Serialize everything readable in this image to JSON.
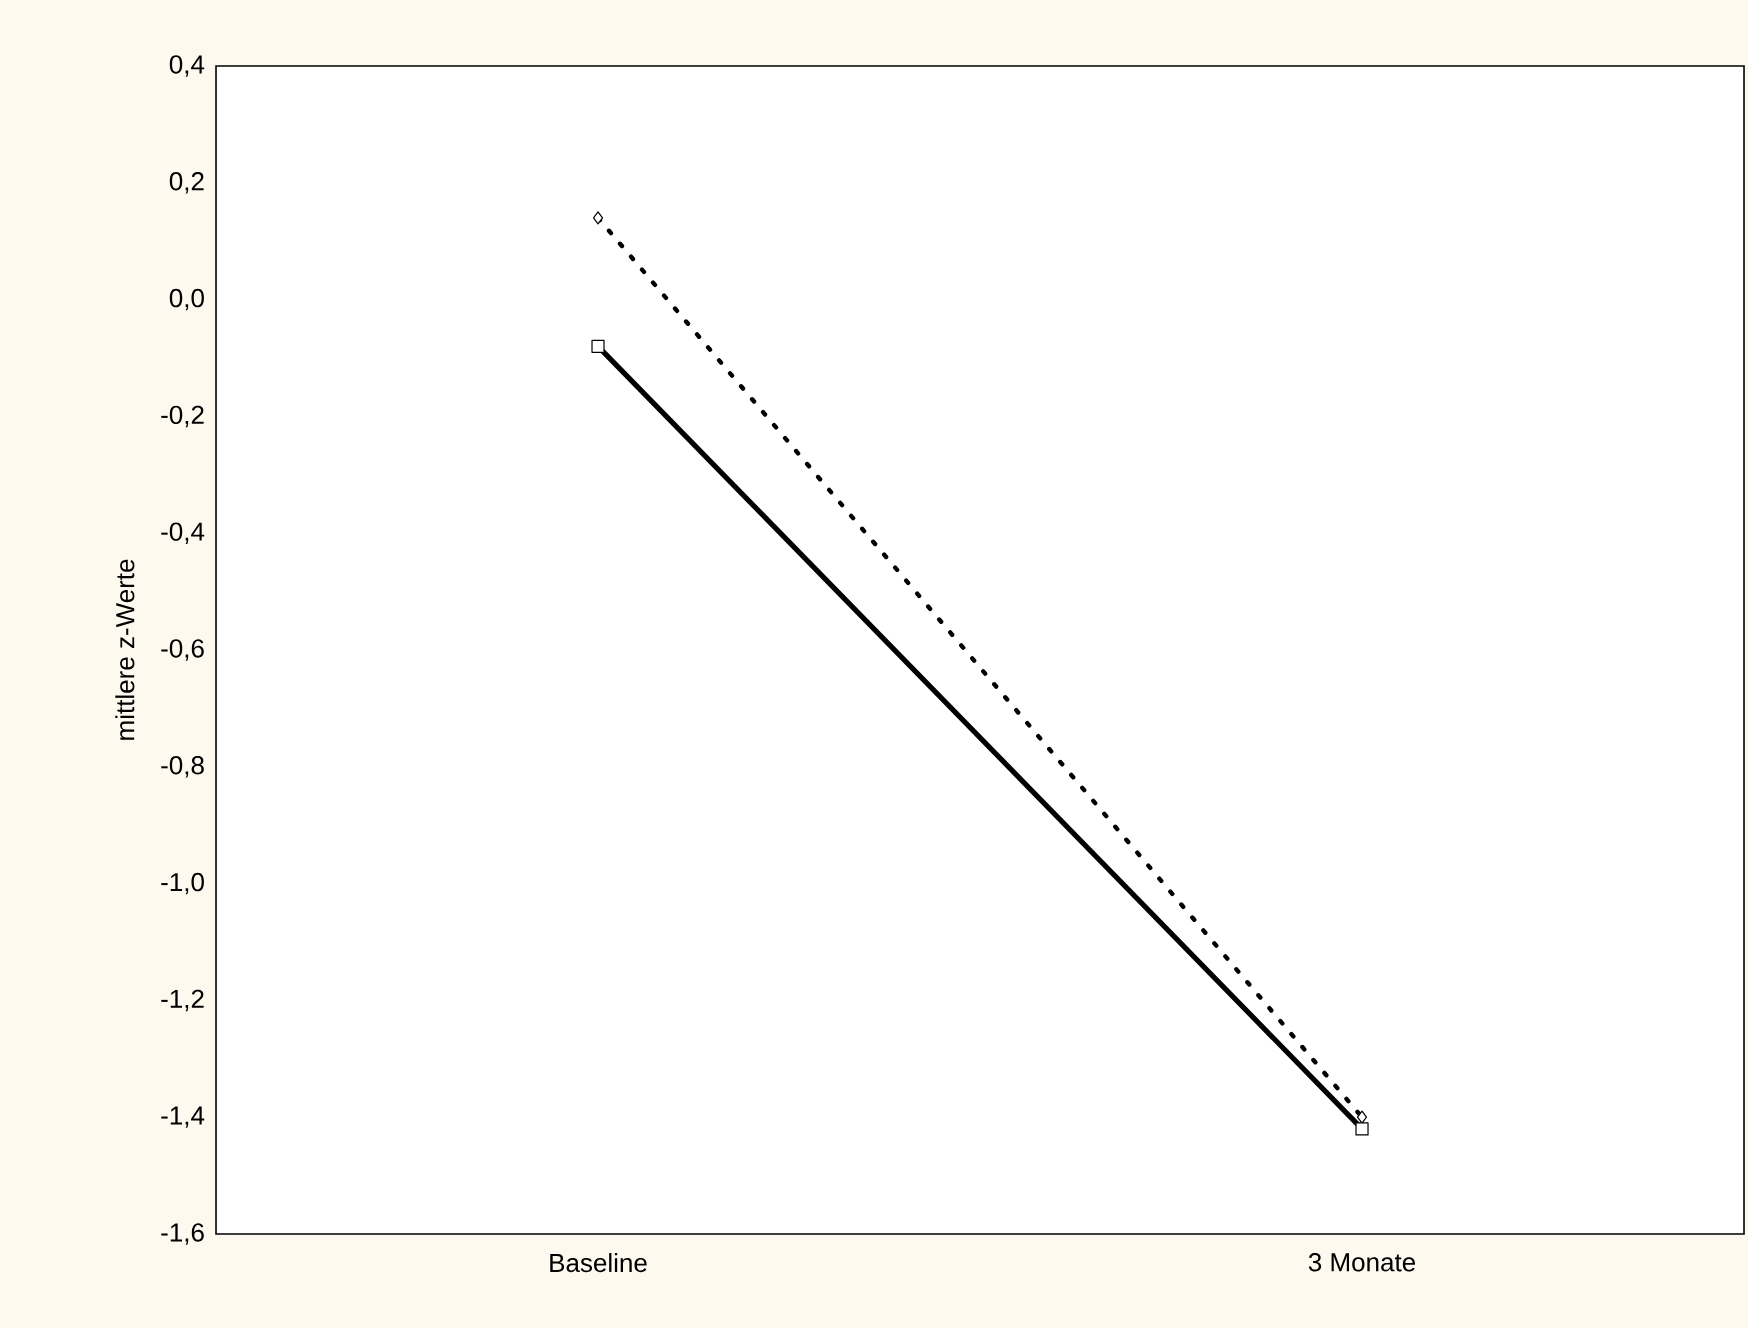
{
  "chart_data": {
    "type": "line",
    "ylabel": "mittlere z-Werte",
    "categories": [
      "Baseline",
      "3 Monate"
    ],
    "series": [
      {
        "color": "#000000",
        "values": [
          0.14,
          -1.4
        ],
        "marker": "diamond",
        "line_style": "dotted"
      },
      {
        "color": "#000000",
        "values": [
          -0.08,
          -1.42
        ],
        "marker": "square",
        "line_style": "solid"
      }
    ],
    "ylim": [
      -1.6,
      0.4
    ],
    "yticks": [
      {
        "value": -1.6,
        "label": "-1,6"
      },
      {
        "value": -1.4,
        "label": "-1,4"
      },
      {
        "value": -1.2,
        "label": "-1,2"
      },
      {
        "value": -1.0,
        "label": "-1,0"
      },
      {
        "value": -0.8,
        "label": "-0,8"
      },
      {
        "value": -0.6,
        "label": "-0,6"
      },
      {
        "value": -0.4,
        "label": "-0,4"
      },
      {
        "value": -0.2,
        "label": "-0,2"
      },
      {
        "value": 0.0,
        "label": "0,0"
      },
      {
        "value": 0.2,
        "label": "0,2"
      },
      {
        "value": 0.4,
        "label": "0,4"
      }
    ],
    "grid": false
  }
}
